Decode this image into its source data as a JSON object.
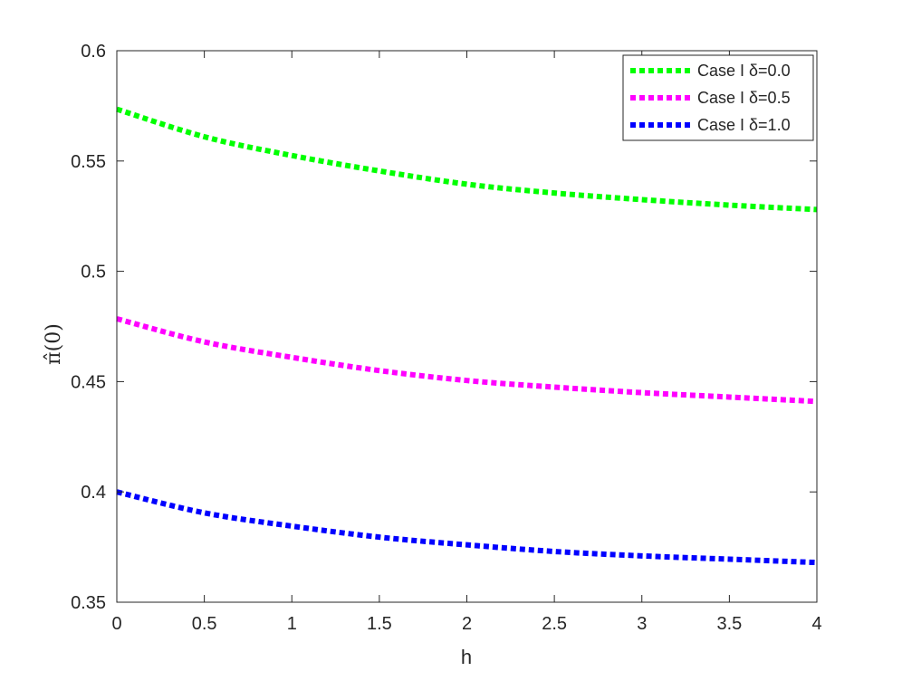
{
  "chart_data": {
    "type": "line",
    "title": "",
    "xlabel": "h",
    "ylabel": "π̂(0)",
    "xlim": [
      0,
      4
    ],
    "ylim": [
      0.35,
      0.6
    ],
    "xticks": [
      0,
      0.5,
      1,
      1.5,
      2,
      2.5,
      3,
      3.5,
      4
    ],
    "xtick_labels": [
      "0",
      "0.5",
      "1",
      "1.5",
      "2",
      "2.5",
      "3",
      "3.5",
      "4"
    ],
    "yticks": [
      0.35,
      0.4,
      0.45,
      0.5,
      0.55,
      0.6
    ],
    "ytick_labels": [
      "0.35",
      "0.4",
      "0.45",
      "0.5",
      "0.55",
      "0.6"
    ],
    "grid": false,
    "legend_position": "top-right",
    "x": [
      0,
      0.5,
      1,
      1.5,
      2,
      2.5,
      3,
      3.5,
      4
    ],
    "series": [
      {
        "name": "Case I δ=0.0",
        "color": "#00ff00",
        "line_style": "dotted",
        "values": [
          0.5735,
          0.561,
          0.5525,
          0.5455,
          0.5395,
          0.5355,
          0.5325,
          0.53,
          0.528
        ]
      },
      {
        "name": "Case I δ=0.5",
        "color": "#ff00ff",
        "line_style": "dotted",
        "values": [
          0.4785,
          0.468,
          0.461,
          0.455,
          0.4505,
          0.4475,
          0.445,
          0.443,
          0.441
        ]
      },
      {
        "name": "Case I δ=1.0",
        "color": "#0000ff",
        "line_style": "dotted",
        "values": [
          0.4,
          0.3905,
          0.3845,
          0.3795,
          0.376,
          0.373,
          0.371,
          0.3695,
          0.368
        ]
      }
    ]
  }
}
